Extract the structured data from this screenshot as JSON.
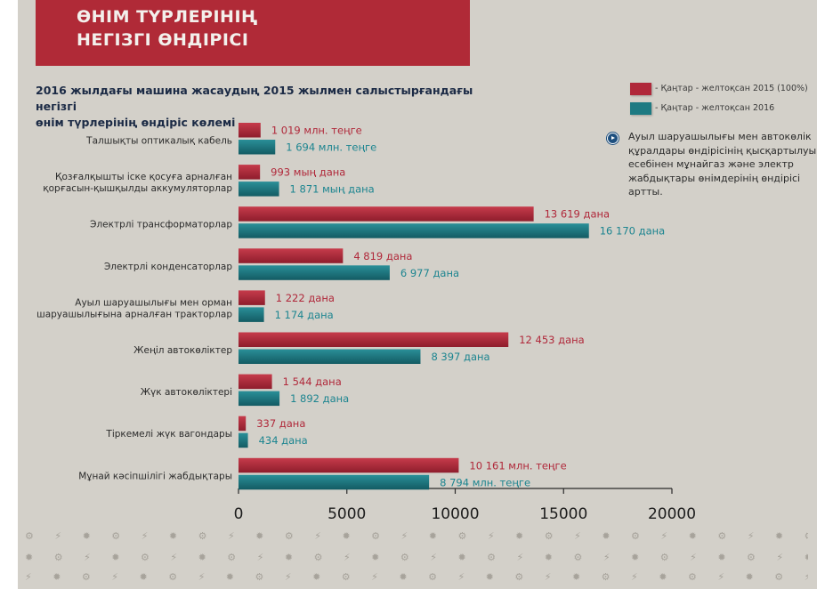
{
  "header": {
    "title_line1": "ӨНІМ ТҮРЛЕРІНІҢ",
    "title_line2": "НЕГІЗГІ ӨНДІРІСІ"
  },
  "subtitle_line1": "2016 жылдағы машина жасаудың 2015 жылмен салыстырғандағы негізгі",
  "subtitle_line2": "өнім түрлерінің өндіріс көлемі",
  "legend": [
    {
      "label": "- Қаңтар - желтоқсан  2015 (100%)",
      "color": "#b0283a"
    },
    {
      "label": "- Қаңтар - желтоқсан 2016",
      "color": "#1d7a82"
    }
  ],
  "note": "Ауыл шаруашылығы мен автокөлік құралдары өндірісінің қысқартылуы есебінен мұнайгаз және электр жабдықтары өнімдерінің өндірісі артты.",
  "colors": {
    "red": "#b0283a",
    "teal": "#1d7a82",
    "red_text": "#b0283a",
    "teal_text": "#1d8590",
    "background": "#d3d0c9",
    "banner": "#b02a37"
  },
  "decor_icons": "gear-icon, bolt-icon, turbine-icon",
  "chart_data": {
    "type": "bar",
    "orientation": "horizontal",
    "xlim": [
      0,
      20000
    ],
    "x_ticks": [
      "0",
      "5000",
      "10000",
      "15000",
      "20000"
    ],
    "categories": [
      [
        "Талшықты оптикалық кабель"
      ],
      [
        "Қозғалқышты іске қосуға арналған",
        "қорғасын-қышқылды аккумуляторлар"
      ],
      [
        "Электрлі трансформаторлар"
      ],
      [
        "Электрлі конденсаторлар"
      ],
      [
        "Ауыл шаруашылығы мен орман",
        "шаруашылығына арналған тракторлар"
      ],
      [
        "Жеңіл автокөліктер"
      ],
      [
        "Жүк автокөліктері"
      ],
      [
        "Тіркемелі жүк вагондары"
      ],
      [
        "Мұнай кәсіпшілігі жабдықтары"
      ]
    ],
    "series": [
      {
        "name": "- Қаңтар - желтоқсан  2015 (100%)",
        "values": [
          1019,
          993,
          13619,
          4819,
          1222,
          12453,
          1544,
          337,
          10161
        ],
        "labels": [
          "1 019 млн. теңге",
          "993 мың дана",
          "13 619 дана",
          "4 819 дана",
          "1 222 дана",
          "12 453 дана",
          "1 544 дана",
          "337 дана",
          "10  161 млн. теңге"
        ]
      },
      {
        "name": "- Қаңтар - желтоқсан 2016",
        "values": [
          1694,
          1871,
          16170,
          6977,
          1174,
          8397,
          1892,
          434,
          8794
        ],
        "labels": [
          "1 694 млн. теңге",
          "1 871 мың дана",
          "16 170 дана",
          "6 977 дана",
          "1 174 дана",
          "8 397 дана",
          "1 892 дана",
          "434 дана",
          "8 794 млн. теңге"
        ]
      }
    ]
  }
}
